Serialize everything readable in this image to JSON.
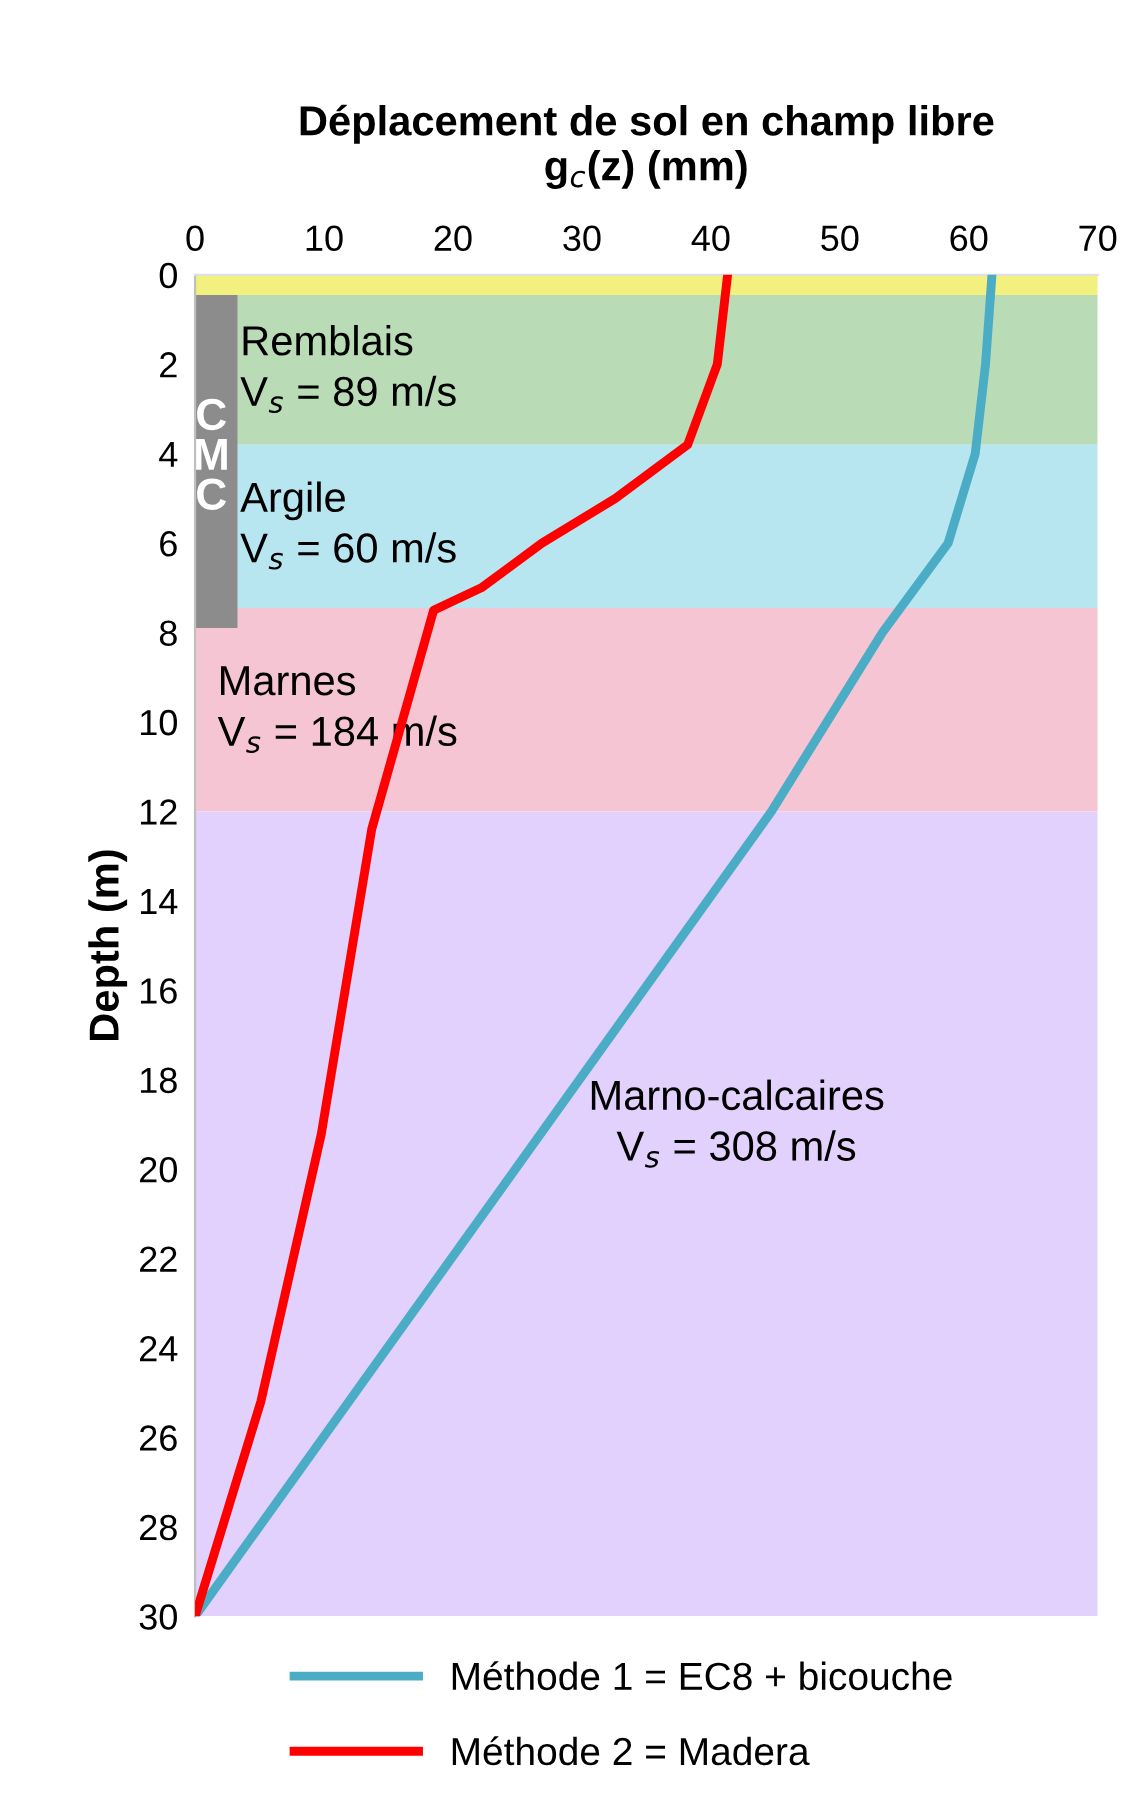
{
  "chart_data": {
    "type": "line",
    "title": "Déplacement de sol en champ libre\ng$_{c}$(z) (mm)",
    "ylabel": "Depth (m)",
    "series": [
      {
        "name": "Méthode 1 = EC8 + bicouche",
        "color": "#4bacc6",
        "x": [
          61.8,
          61.3,
          60.5,
          58.4,
          53.3,
          44.7,
          0
        ],
        "values": [
          0,
          2,
          4,
          6,
          8,
          12,
          30
        ]
      },
      {
        "name": "Méthode 2 = Madera",
        "color": "#ff0000",
        "x": [
          41.3,
          40.5,
          38.2,
          32.6,
          26.9,
          22.2,
          18.5,
          13.7,
          9.8,
          5.1,
          0
        ],
        "values": [
          0,
          2,
          3.8,
          5,
          6,
          7,
          7.5,
          12.4,
          19.2,
          25.2,
          30
        ]
      }
    ],
    "bands": [
      {
        "axis": "y",
        "from": 0,
        "to": 0.45,
        "color": "#f2f07f"
      },
      {
        "axis": "y",
        "from": 0.45,
        "to": 3.8,
        "color": "#b9dcb7",
        "label": "Remblais\nV$_{s}$ = 89 m/s"
      },
      {
        "axis": "y",
        "from": 3.8,
        "to": 7.45,
        "color": "#b7e6f1",
        "label": "Argile\nV$_{s}$ = 60 m/s"
      },
      {
        "axis": "y",
        "from": 7.45,
        "to": 12,
        "color": "#f6c5d4",
        "label": "Marnes\nV$_{s}$ = 184 m/s"
      },
      {
        "axis": "y",
        "from": 12,
        "to": 30,
        "color": "#e1d1fc",
        "label": "Marno-calcaires\nV$_{s}$ = 308 m/s"
      }
    ],
    "annotations": [
      "C\nM\nC"
    ],
    "xlim": [
      0,
      70
    ],
    "xticks": [
      0,
      10,
      20,
      30,
      40,
      50,
      60,
      70
    ],
    "ylim": [
      30,
      0
    ],
    "yticks": [
      0,
      2,
      4,
      6,
      8,
      10,
      12,
      14,
      16,
      18,
      20,
      22,
      24,
      26,
      28,
      30
    ],
    "grid": false,
    "legend": "bottom",
    "marker": "none",
    "line_style": "solid"
  }
}
